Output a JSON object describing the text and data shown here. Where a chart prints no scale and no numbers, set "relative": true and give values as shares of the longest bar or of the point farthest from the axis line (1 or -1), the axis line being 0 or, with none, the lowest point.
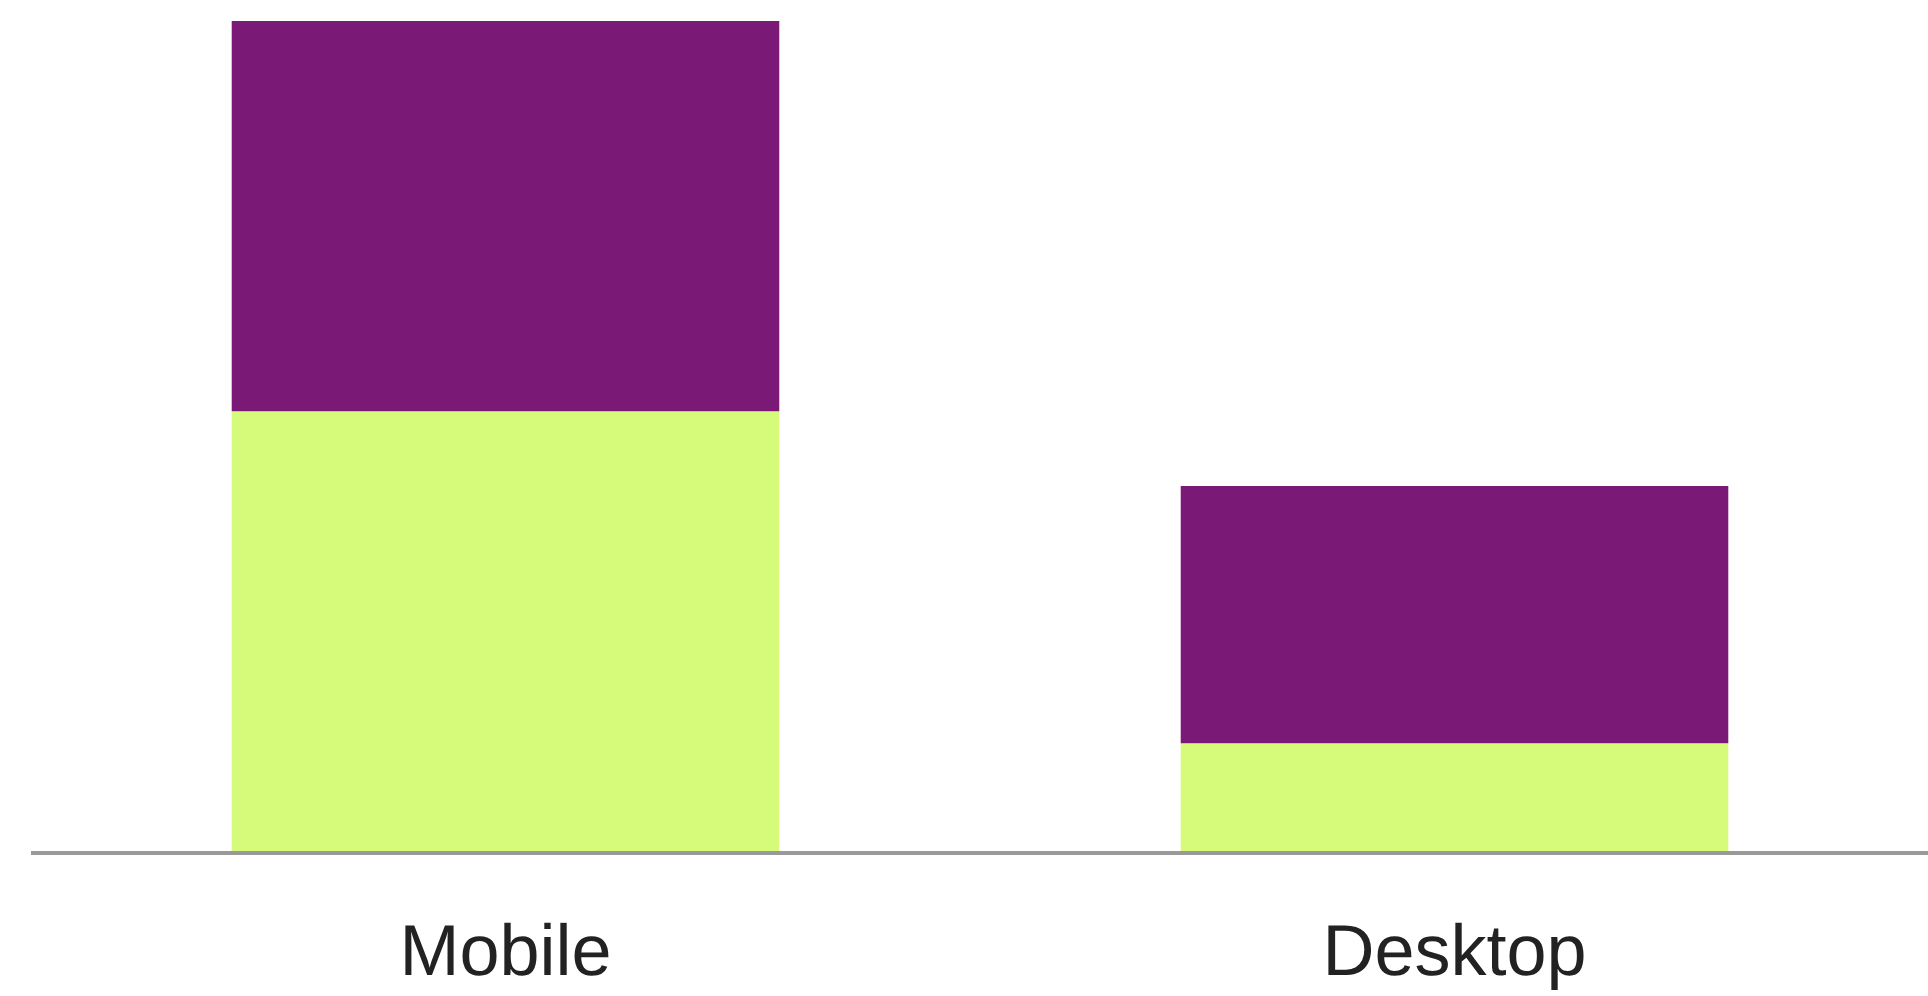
{
  "chart_data": {
    "type": "bar",
    "relative": true,
    "stacked": true,
    "categories": [
      "Mobile",
      "Desktop"
    ],
    "series": [
      {
        "color": "#d6fb7a",
        "values": [
          0.531,
          0.132
        ]
      },
      {
        "color": "#7b1a76",
        "values": [
          0.469,
          0.309
        ]
      }
    ],
    "grid": false
  }
}
